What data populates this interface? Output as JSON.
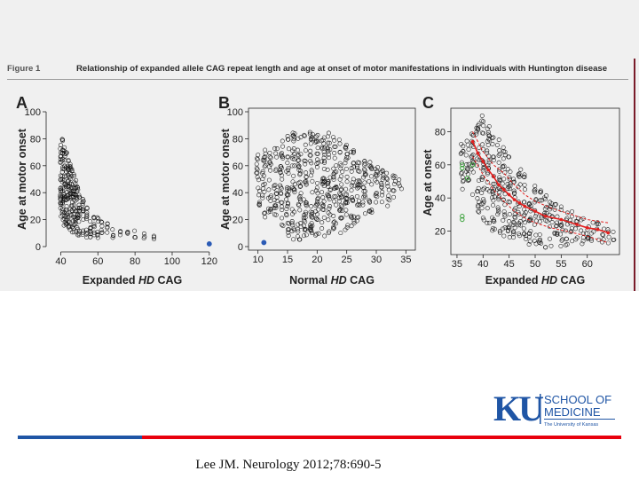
{
  "figure": {
    "label": "Figure 1",
    "caption": "Relationship of expanded allele CAG repeat length and age at onset of motor manifestations in individuals with Huntington disease"
  },
  "citation": "Lee JM. Neurology 2012;78:690-5",
  "logo": {
    "mark": "KU",
    "line1": "SCHOOL OF",
    "line2": "MEDICINE",
    "line3": "The University of Kansas",
    "colors": {
      "blue": "#1f55a5",
      "red": "#e8000d"
    }
  },
  "bottom_bar_colors": [
    "#1f55a5",
    "#e8000d"
  ],
  "chart_data": [
    {
      "type": "scatter",
      "panel_label": "A",
      "xlabel_parts": [
        "Expanded ",
        "HD",
        " CAG"
      ],
      "ylabel": "Age at motor onset",
      "xlim": [
        35,
        122
      ],
      "ylim": [
        0,
        100
      ],
      "xticks": [
        40,
        60,
        80,
        100,
        120
      ],
      "yticks": [
        0,
        20,
        40,
        60,
        80,
        100
      ],
      "grid": false,
      "highlight_points": [
        {
          "x": 120,
          "y": 2,
          "color": "#2b5bb5"
        }
      ],
      "clusters": [
        {
          "x": 40,
          "y_range": [
            22,
            82
          ]
        },
        {
          "x": 41,
          "y_range": [
            18,
            80
          ]
        },
        {
          "x": 42,
          "y_range": [
            14,
            75
          ]
        },
        {
          "x": 43,
          "y_range": [
            14,
            70
          ]
        },
        {
          "x": 44,
          "y_range": [
            12,
            65
          ]
        },
        {
          "x": 45,
          "y_range": [
            12,
            62
          ]
        },
        {
          "x": 46,
          "y_range": [
            10,
            58
          ]
        },
        {
          "x": 47,
          "y_range": [
            10,
            55
          ]
        },
        {
          "x": 48,
          "y_range": [
            10,
            50
          ]
        },
        {
          "x": 49,
          "y_range": [
            8,
            45
          ]
        },
        {
          "x": 50,
          "y_range": [
            8,
            42
          ]
        },
        {
          "x": 52,
          "y_range": [
            8,
            38
          ]
        },
        {
          "x": 54,
          "y_range": [
            6,
            32
          ]
        },
        {
          "x": 56,
          "y_range": [
            6,
            28
          ]
        },
        {
          "x": 58,
          "y_range": [
            6,
            25
          ]
        },
        {
          "x": 60,
          "y_range": [
            6,
            22
          ]
        },
        {
          "x": 62,
          "y_range": [
            6,
            20
          ]
        },
        {
          "x": 65,
          "y_range": [
            6,
            18
          ]
        },
        {
          "x": 68,
          "y_range": [
            6,
            16
          ]
        },
        {
          "x": 72,
          "y_range": [
            6,
            14
          ]
        },
        {
          "x": 76,
          "y_range": [
            8,
            12
          ]
        },
        {
          "x": 80,
          "y_range": [
            6,
            12
          ]
        },
        {
          "x": 85,
          "y_range": [
            6,
            10
          ]
        },
        {
          "x": 90,
          "y_range": [
            5,
            8
          ]
        }
      ]
    },
    {
      "type": "scatter",
      "panel_label": "B",
      "xlabel_parts": [
        "Normal ",
        "HD",
        " CAG"
      ],
      "ylabel": "Age at motor onset",
      "xlim": [
        9,
        36
      ],
      "ylim": [
        0,
        100
      ],
      "xticks": [
        10,
        15,
        20,
        25,
        30,
        35
      ],
      "yticks": [
        0,
        20,
        40,
        60,
        80,
        100
      ],
      "grid": false,
      "highlight_points": [
        {
          "x": 11,
          "y": 3,
          "color": "#2b5bb5"
        }
      ],
      "clusters": [
        {
          "x": 10,
          "y_range": [
            30,
            70
          ]
        },
        {
          "x": 11,
          "y_range": [
            20,
            72
          ]
        },
        {
          "x": 12,
          "y_range": [
            25,
            70
          ]
        },
        {
          "x": 13,
          "y_range": [
            22,
            75
          ]
        },
        {
          "x": 14,
          "y_range": [
            15,
            80
          ]
        },
        {
          "x": 15,
          "y_range": [
            8,
            82
          ]
        },
        {
          "x": 16,
          "y_range": [
            5,
            85
          ]
        },
        {
          "x": 17,
          "y_range": [
            5,
            88
          ]
        },
        {
          "x": 18,
          "y_range": [
            8,
            85
          ]
        },
        {
          "x": 19,
          "y_range": [
            5,
            88
          ]
        },
        {
          "x": 20,
          "y_range": [
            8,
            85
          ]
        },
        {
          "x": 21,
          "y_range": [
            5,
            90
          ]
        },
        {
          "x": 22,
          "y_range": [
            10,
            85
          ]
        },
        {
          "x": 23,
          "y_range": [
            8,
            82
          ]
        },
        {
          "x": 24,
          "y_range": [
            10,
            80
          ]
        },
        {
          "x": 25,
          "y_range": [
            12,
            78
          ]
        },
        {
          "x": 26,
          "y_range": [
            15,
            75
          ]
        },
        {
          "x": 27,
          "y_range": [
            18,
            72
          ]
        },
        {
          "x": 28,
          "y_range": [
            20,
            70
          ]
        },
        {
          "x": 29,
          "y_range": [
            25,
            65
          ]
        },
        {
          "x": 30,
          "y_range": [
            28,
            62
          ]
        },
        {
          "x": 31,
          "y_range": [
            30,
            60
          ]
        },
        {
          "x": 32,
          "y_range": [
            30,
            55
          ]
        },
        {
          "x": 33,
          "y_range": [
            35,
            55
          ]
        },
        {
          "x": 34,
          "y_range": [
            40,
            50
          ]
        }
      ]
    },
    {
      "type": "scatter",
      "panel_label": "C",
      "xlabel_parts": [
        "Expanded ",
        "HD",
        " CAG"
      ],
      "ylabel": "Age at onset",
      "xlim": [
        34.5,
        65.5
      ],
      "ylim": [
        8,
        92
      ],
      "xticks": [
        35,
        40,
        45,
        50,
        55,
        60
      ],
      "yticks": [
        20,
        40,
        60,
        80
      ],
      "grid": false,
      "green_points": [
        {
          "x": 36,
          "y": 60
        },
        {
          "x": 36,
          "y": 58
        },
        {
          "x": 37,
          "y": 52
        },
        {
          "x": 36,
          "y": 29
        },
        {
          "x": 36,
          "y": 27
        },
        {
          "x": 38,
          "y": 60
        }
      ],
      "median_line": [
        {
          "x": 38,
          "y": 74
        },
        {
          "x": 39,
          "y": 67
        },
        {
          "x": 40,
          "y": 62
        },
        {
          "x": 41,
          "y": 57
        },
        {
          "x": 42,
          "y": 53
        },
        {
          "x": 43,
          "y": 48
        },
        {
          "x": 44,
          "y": 45
        },
        {
          "x": 45,
          "y": 42
        },
        {
          "x": 46,
          "y": 39
        },
        {
          "x": 47,
          "y": 37
        },
        {
          "x": 48,
          "y": 35
        },
        {
          "x": 50,
          "y": 32
        },
        {
          "x": 52,
          "y": 29
        },
        {
          "x": 55,
          "y": 27
        },
        {
          "x": 58,
          "y": 24
        },
        {
          "x": 60,
          "y": 22
        },
        {
          "x": 62,
          "y": 21
        },
        {
          "x": 64,
          "y": 19
        }
      ],
      "outer_lines": [
        [
          {
            "x": 38,
            "y": 80
          },
          {
            "x": 40,
            "y": 68
          },
          {
            "x": 42,
            "y": 60
          },
          {
            "x": 44,
            "y": 55
          },
          {
            "x": 46,
            "y": 48
          },
          {
            "x": 48,
            "y": 42
          },
          {
            "x": 50,
            "y": 38
          },
          {
            "x": 53,
            "y": 34
          },
          {
            "x": 56,
            "y": 31
          },
          {
            "x": 60,
            "y": 27
          },
          {
            "x": 64,
            "y": 25
          }
        ],
        [
          {
            "x": 38,
            "y": 65
          },
          {
            "x": 40,
            "y": 54
          },
          {
            "x": 42,
            "y": 45
          },
          {
            "x": 44,
            "y": 38
          },
          {
            "x": 46,
            "y": 32
          },
          {
            "x": 48,
            "y": 28
          },
          {
            "x": 50,
            "y": 25
          },
          {
            "x": 53,
            "y": 22
          },
          {
            "x": 56,
            "y": 20
          },
          {
            "x": 60,
            "y": 17
          },
          {
            "x": 64,
            "y": 13
          }
        ]
      ],
      "clusters": [
        {
          "x": 36,
          "y_range": [
            45,
            75
          ]
        },
        {
          "x": 37,
          "y_range": [
            50,
            80
          ]
        },
        {
          "x": 38,
          "y_range": [
            40,
            80
          ]
        },
        {
          "x": 39,
          "y_range": [
            30,
            85
          ]
        },
        {
          "x": 40,
          "y_range": [
            25,
            90
          ]
        },
        {
          "x": 41,
          "y_range": [
            22,
            85
          ]
        },
        {
          "x": 42,
          "y_range": [
            20,
            80
          ]
        },
        {
          "x": 43,
          "y_range": [
            18,
            78
          ]
        },
        {
          "x": 44,
          "y_range": [
            15,
            72
          ]
        },
        {
          "x": 45,
          "y_range": [
            15,
            68
          ]
        },
        {
          "x": 46,
          "y_range": [
            15,
            62
          ]
        },
        {
          "x": 47,
          "y_range": [
            14,
            58
          ]
        },
        {
          "x": 48,
          "y_range": [
            12,
            55
          ]
        },
        {
          "x": 49,
          "y_range": [
            12,
            52
          ]
        },
        {
          "x": 50,
          "y_range": [
            12,
            48
          ]
        },
        {
          "x": 51,
          "y_range": [
            12,
            45
          ]
        },
        {
          "x": 52,
          "y_range": [
            10,
            42
          ]
        },
        {
          "x": 53,
          "y_range": [
            10,
            40
          ]
        },
        {
          "x": 54,
          "y_range": [
            10,
            38
          ]
        },
        {
          "x": 55,
          "y_range": [
            10,
            36
          ]
        },
        {
          "x": 56,
          "y_range": [
            10,
            32
          ]
        },
        {
          "x": 57,
          "y_range": [
            12,
            32
          ]
        },
        {
          "x": 58,
          "y_range": [
            12,
            30
          ]
        },
        {
          "x": 59,
          "y_range": [
            12,
            28
          ]
        },
        {
          "x": 60,
          "y_range": [
            12,
            28
          ]
        },
        {
          "x": 61,
          "y_range": [
            14,
            26
          ]
        },
        {
          "x": 62,
          "y_range": [
            14,
            26
          ]
        },
        {
          "x": 63,
          "y_range": [
            12,
            24
          ]
        },
        {
          "x": 64,
          "y_range": [
            12,
            22
          ]
        },
        {
          "x": 65,
          "y_range": [
            12,
            20
          ]
        }
      ]
    }
  ]
}
